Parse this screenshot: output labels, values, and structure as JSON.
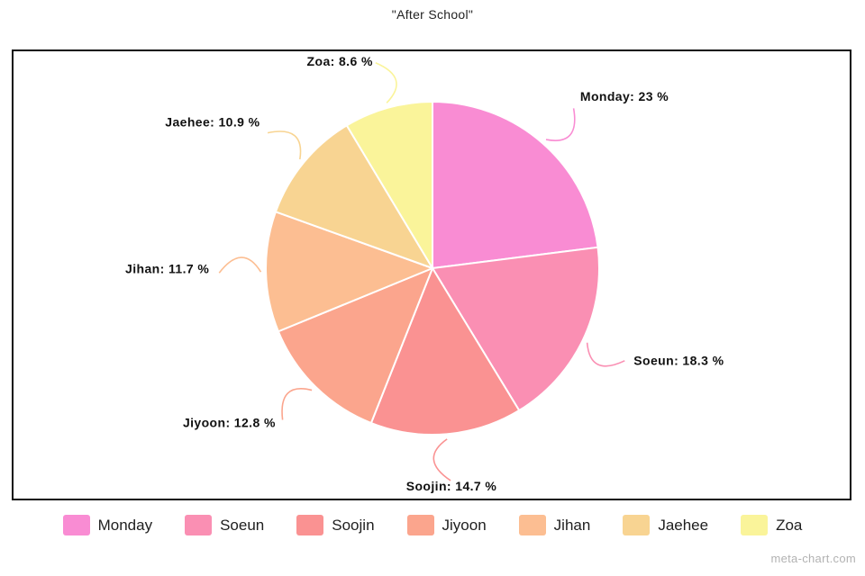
{
  "title": "\"After School\"",
  "watermark": "meta-chart.com",
  "chart_data": {
    "type": "pie",
    "title": "\"After School\"",
    "categories": [
      "Monday",
      "Soeun",
      "Soojin",
      "Jiyoon",
      "Jihan",
      "Jaehee",
      "Zoa"
    ],
    "values": [
      23,
      18.3,
      14.7,
      12.8,
      11.7,
      10.9,
      8.6
    ],
    "colors": [
      "#F98CD3",
      "#FA8FB3",
      "#FA9292",
      "#FBA58D",
      "#FCBE92",
      "#F8D492",
      "#FAF49A"
    ],
    "unit": "%",
    "label_format": "{name}: {value} %",
    "slice_labels": [
      "Monday: 23 %",
      "Soeun: 18.3 %",
      "Soojin: 14.7 %",
      "Jiyoon: 12.8 %",
      "Jihan: 11.7 %",
      "Jaehee: 10.9 %",
      "Zoa: 8.6 %"
    ],
    "start_angle_deg": 0,
    "direction": "clockwise",
    "slice_border_color": "#ffffff",
    "legend_position": "bottom"
  },
  "legend": {
    "items": [
      {
        "label": "Monday",
        "color": "#F98CD3"
      },
      {
        "label": "Soeun",
        "color": "#FA8FB3"
      },
      {
        "label": "Soojin",
        "color": "#FA9292"
      },
      {
        "label": "Jiyoon",
        "color": "#FBA58D"
      },
      {
        "label": "Jihan",
        "color": "#FCBE92"
      },
      {
        "label": "Jaehee",
        "color": "#F8D492"
      },
      {
        "label": "Zoa",
        "color": "#FAF49A"
      }
    ]
  }
}
